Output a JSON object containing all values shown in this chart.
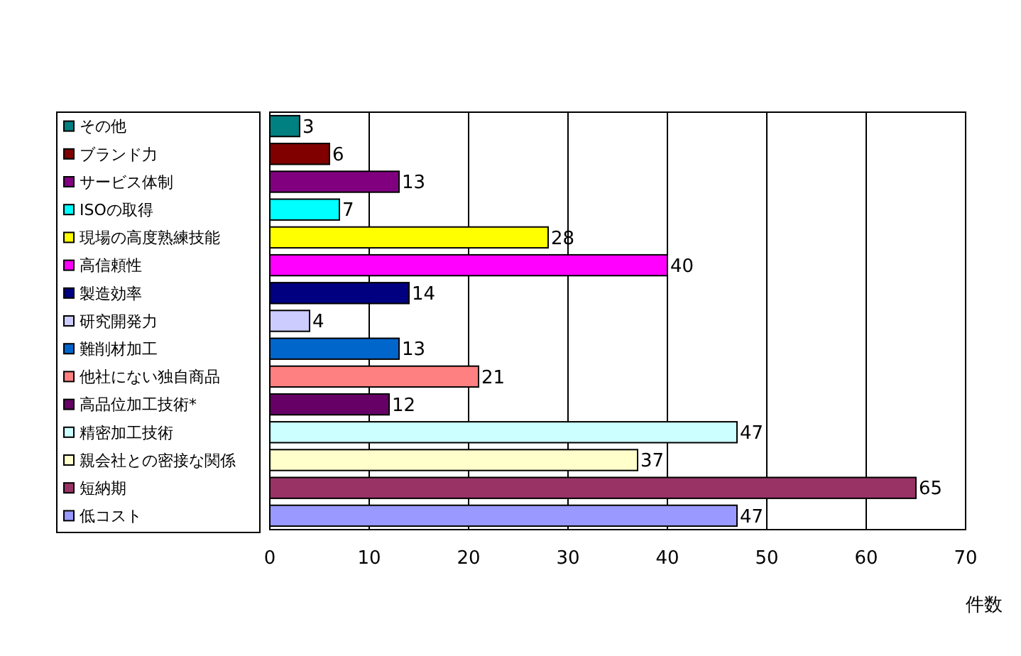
{
  "chart_data": {
    "type": "bar",
    "orientation": "horizontal",
    "xlabel": "件数",
    "categories": [
      "その他",
      "ブランド力",
      "サービス体制",
      "ISOの取得",
      "現場の高度熟練技能",
      "高信頼性",
      "製造効率",
      "研究開発力",
      "難削材加工",
      "他社にない独自商品",
      "高品位加工技術*",
      "精密加工技術",
      "親会社との密接な関係",
      "短納期",
      "低コスト"
    ],
    "values": [
      3,
      6,
      13,
      7,
      28,
      40,
      14,
      4,
      13,
      21,
      12,
      47,
      37,
      65,
      47
    ],
    "colors": [
      "#008080",
      "#800000",
      "#800080",
      "#00ffff",
      "#ffff00",
      "#ff00ff",
      "#000080",
      "#ccccff",
      "#0066cc",
      "#ff8080",
      "#660066",
      "#ccffff",
      "#ffffcc",
      "#993366",
      "#9999ff"
    ],
    "xlim": [
      0,
      70
    ],
    "xticks": [
      0,
      10,
      20,
      30,
      40,
      50,
      60,
      70
    ],
    "grid": "x",
    "data_labels": true
  }
}
